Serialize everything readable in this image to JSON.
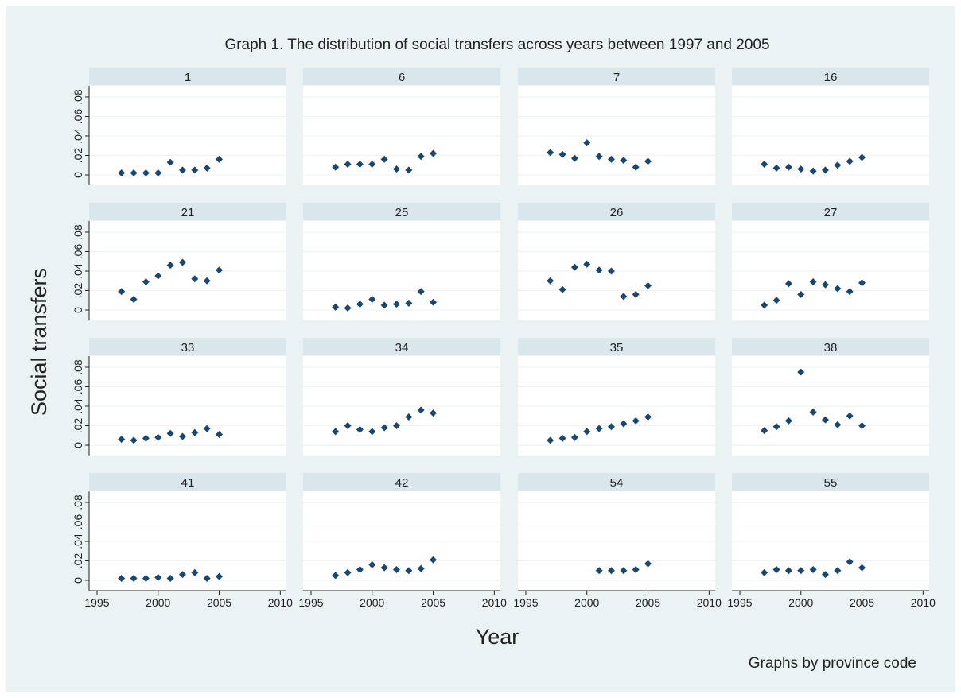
{
  "chart_data": {
    "type": "scatter",
    "title": "Graph 1. The distribution of social transfers across years between 1997 and 2005",
    "x_label": "Year",
    "y_label": "Social transfers",
    "note": "Graphs by province code",
    "color": "#1a476f",
    "grid": true,
    "xlim": [
      1994.35,
      2010.5
    ],
    "xticks": [
      1995,
      2000,
      2005,
      2010
    ],
    "ylim": [
      -0.0106,
      0.0914
    ],
    "yticks": [
      0,
      {
        "value": 0.02,
        "label": ".02"
      },
      {
        "value": 0.04,
        "label": ".04"
      },
      {
        "value": 0.06,
        "label": ".06"
      },
      {
        "value": 0.08,
        "label": ".08"
      }
    ],
    "panels": [
      {
        "title": "1",
        "x": [
          1997,
          1998,
          1999,
          2000,
          2001,
          2002,
          2003,
          2004,
          2005
        ],
        "y": [
          0.002,
          0.002,
          0.002,
          0.002,
          0.013,
          0.005,
          0.005,
          0.007,
          0.016
        ]
      },
      {
        "title": "6",
        "x": [
          1997,
          1998,
          1999,
          2000,
          2001,
          2002,
          2003,
          2004,
          2005
        ],
        "y": [
          0.008,
          0.011,
          0.011,
          0.011,
          0.016,
          0.006,
          0.005,
          0.019,
          0.022
        ]
      },
      {
        "title": "7",
        "x": [
          1997,
          1998,
          1999,
          2000,
          2001,
          2002,
          2003,
          2004,
          2005
        ],
        "y": [
          0.023,
          0.021,
          0.017,
          0.033,
          0.019,
          0.016,
          0.015,
          0.008,
          0.014
        ]
      },
      {
        "title": "16",
        "x": [
          1997,
          1998,
          1999,
          2000,
          2001,
          2002,
          2003,
          2004,
          2005
        ],
        "y": [
          0.011,
          0.007,
          0.008,
          0.006,
          0.004,
          0.005,
          0.01,
          0.014,
          0.018
        ]
      },
      {
        "title": "21",
        "x": [
          1997,
          1998,
          1999,
          2000,
          2001,
          2002,
          2003,
          2004,
          2005
        ],
        "y": [
          0.019,
          0.011,
          0.029,
          0.035,
          0.046,
          0.049,
          0.032,
          0.03,
          0.041
        ]
      },
      {
        "title": "25",
        "x": [
          1997,
          1998,
          1999,
          2000,
          2001,
          2002,
          2003,
          2004,
          2005
        ],
        "y": [
          0.003,
          0.002,
          0.006,
          0.011,
          0.005,
          0.006,
          0.007,
          0.019,
          0.008
        ]
      },
      {
        "title": "26",
        "x": [
          1997,
          1998,
          1999,
          2000,
          2001,
          2002,
          2003,
          2004,
          2005
        ],
        "y": [
          0.03,
          0.021,
          0.044,
          0.047,
          0.041,
          0.04,
          0.014,
          0.016,
          0.025
        ]
      },
      {
        "title": "27",
        "x": [
          1997,
          1998,
          1999,
          2000,
          2001,
          2002,
          2003,
          2004,
          2005
        ],
        "y": [
          0.005,
          0.01,
          0.027,
          0.016,
          0.029,
          0.026,
          0.022,
          0.019,
          0.028
        ]
      },
      {
        "title": "33",
        "x": [
          1997,
          1998,
          1999,
          2000,
          2001,
          2002,
          2003,
          2004,
          2005
        ],
        "y": [
          0.006,
          0.005,
          0.007,
          0.008,
          0.012,
          0.009,
          0.013,
          0.017,
          0.011
        ]
      },
      {
        "title": "34",
        "x": [
          1997,
          1998,
          1999,
          2000,
          2001,
          2002,
          2003,
          2004,
          2005
        ],
        "y": [
          0.014,
          0.02,
          0.016,
          0.014,
          0.018,
          0.02,
          0.029,
          0.036,
          0.033
        ]
      },
      {
        "title": "35",
        "x": [
          1997,
          1998,
          1999,
          2000,
          2001,
          2002,
          2003,
          2004,
          2005
        ],
        "y": [
          0.005,
          0.007,
          0.008,
          0.014,
          0.017,
          0.019,
          0.022,
          0.025,
          0.029
        ]
      },
      {
        "title": "38",
        "x": [
          1997,
          1998,
          1999,
          2000,
          2001,
          2002,
          2003,
          2004,
          2005
        ],
        "y": [
          0.015,
          0.019,
          0.025,
          0.075,
          0.034,
          0.026,
          0.021,
          0.03,
          0.02
        ]
      },
      {
        "title": "41",
        "x": [
          1997,
          1998,
          1999,
          2000,
          2001,
          2002,
          2003,
          2004,
          2005
        ],
        "y": [
          0.002,
          0.002,
          0.002,
          0.003,
          0.002,
          0.006,
          0.008,
          0.002,
          0.004
        ]
      },
      {
        "title": "42",
        "x": [
          1997,
          1998,
          1999,
          2000,
          2001,
          2002,
          2003,
          2004,
          2005
        ],
        "y": [
          0.005,
          0.008,
          0.011,
          0.016,
          0.013,
          0.011,
          0.01,
          0.012,
          0.021
        ]
      },
      {
        "title": "54",
        "x": [
          2001,
          2002,
          2003,
          2004,
          2005
        ],
        "y": [
          0.01,
          0.01,
          0.01,
          0.011,
          0.017
        ]
      },
      {
        "title": "55",
        "x": [
          1997,
          1998,
          1999,
          2000,
          2001,
          2002,
          2003,
          2004,
          2005
        ],
        "y": [
          0.008,
          0.011,
          0.01,
          0.01,
          0.011,
          0.006,
          0.01,
          0.019,
          0.013
        ]
      }
    ]
  }
}
